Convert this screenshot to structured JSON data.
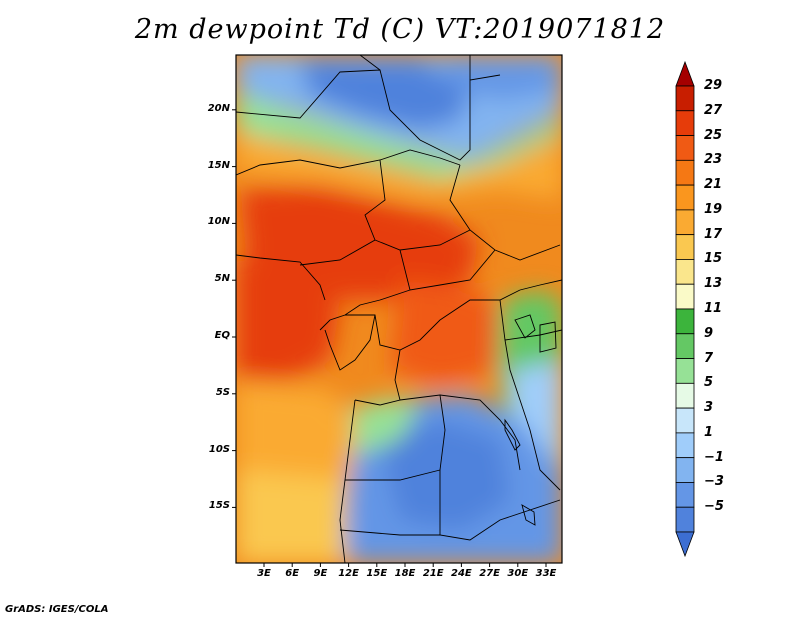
{
  "title": "2m dewpoint Td (C) VT:2019071812",
  "credit": "GrADS: IGES/COLA",
  "lat_ticks": [
    "20N",
    "15N",
    "10N",
    "5N",
    "EQ",
    "5S",
    "10S",
    "15S"
  ],
  "lat_values": [
    20,
    15,
    10,
    5,
    0,
    -5,
    -10,
    -15
  ],
  "lon_ticks": [
    "3E",
    "6E",
    "9E",
    "12E",
    "15E",
    "18E",
    "21E",
    "24E",
    "27E",
    "30E",
    "33E"
  ],
  "lon_values": [
    3,
    6,
    9,
    12,
    15,
    18,
    21,
    24,
    27,
    30,
    33
  ],
  "colorbar": {
    "labels": [
      "29",
      "27",
      "25",
      "23",
      "21",
      "19",
      "17",
      "15",
      "13",
      "11",
      "9",
      "7",
      "5",
      "3",
      "1",
      "−1",
      "−3",
      "−5"
    ],
    "colors": [
      "#a50000",
      "#c81e00",
      "#e63c0a",
      "#f05a14",
      "#f57814",
      "#fa961e",
      "#faaa32",
      "#fac850",
      "#fae68c",
      "#fafac8",
      "#3cb43c",
      "#64c864",
      "#96e196",
      "#e6fae6",
      "#c8e6fa",
      "#a0cdfa",
      "#82b4f0",
      "#6496e6",
      "#5082dc",
      "#3c6ed2"
    ]
  }
}
